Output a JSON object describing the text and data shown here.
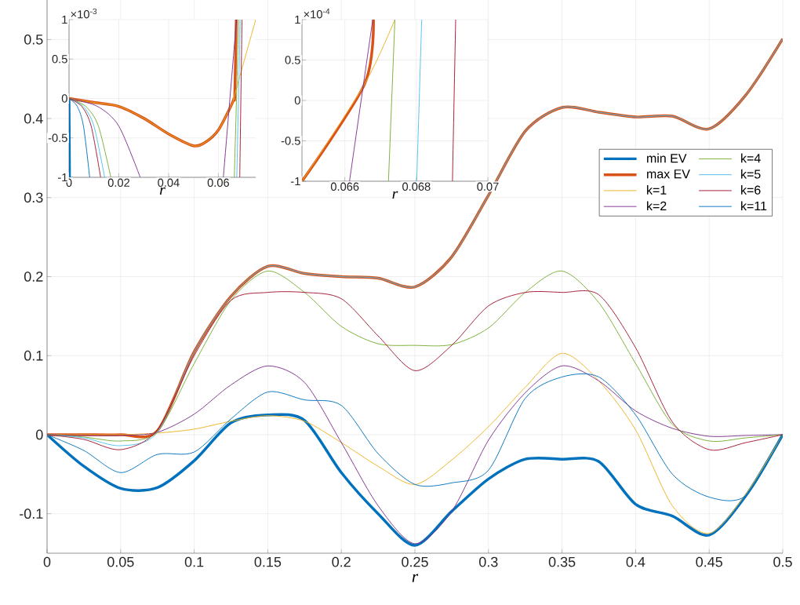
{
  "chart_data": [
    {
      "type": "line",
      "xlabel": "r",
      "x": [
        0,
        0.025,
        0.05,
        0.075,
        0.1,
        0.125,
        0.15,
        0.175,
        0.2,
        0.225,
        0.25,
        0.275,
        0.3,
        0.325,
        0.35,
        0.375,
        0.4,
        0.425,
        0.45,
        0.475,
        0.5
      ],
      "xlim": [
        0,
        0.5
      ],
      "xticks": [
        0,
        0.05,
        0.1,
        0.15,
        0.2,
        0.25,
        0.3,
        0.35,
        0.4,
        0.45,
        0.5
      ],
      "ylim": [
        -0.15,
        0.55
      ],
      "yticks": [
        -0.1,
        0,
        0.1,
        0.2,
        0.3,
        0.4,
        0.5
      ],
      "grid": true,
      "legend": "top right",
      "series": [
        {
          "name": "min EV",
          "color": "#0072bd",
          "values": [
            0,
            -0.04,
            -0.068,
            -0.067,
            -0.033,
            0.015,
            0.025,
            0.018,
            -0.048,
            -0.1,
            -0.14,
            -0.097,
            -0.056,
            -0.031,
            -0.031,
            -0.034,
            -0.088,
            -0.103,
            -0.127,
            -0.077,
            0
          ]
        },
        {
          "name": "max EV",
          "color": "#d95319",
          "values": [
            0,
            0,
            0,
            0.005,
            0.105,
            0.175,
            0.213,
            0.204,
            0.2,
            0.198,
            0.187,
            0.225,
            0.303,
            0.384,
            0.414,
            0.408,
            0.402,
            0.403,
            0.387,
            0.43,
            0.501
          ]
        },
        {
          "name": "k=1",
          "color": "#edb120",
          "values": [
            0,
            0,
            0,
            0.002,
            0.007,
            0.017,
            0.024,
            0.017,
            -0.01,
            -0.04,
            -0.063,
            -0.032,
            0.01,
            0.06,
            0.103,
            0.068,
            0.006,
            -0.09,
            -0.125,
            -0.075,
            0
          ]
        },
        {
          "name": "k=2",
          "color": "#7e2f8e",
          "values": [
            0,
            -0.001,
            -0.001,
            0.003,
            0.026,
            0.063,
            0.087,
            0.066,
            -0.01,
            -0.09,
            -0.138,
            -0.097,
            -0.007,
            0.053,
            0.087,
            0.068,
            0.03,
            0.008,
            -0.002,
            -0.001,
            0
          ]
        },
        {
          "name": "k=4",
          "color": "#77ac30",
          "values": [
            0,
            -0.003,
            -0.008,
            0.004,
            0.09,
            0.17,
            0.207,
            0.18,
            0.137,
            0.115,
            0.113,
            0.114,
            0.135,
            0.18,
            0.207,
            0.167,
            0.09,
            0.013,
            -0.008,
            -0.004,
            0
          ]
        },
        {
          "name": "k=5",
          "color": "#4dbeee",
          "values": [
            0,
            -0.004,
            -0.014,
            0.003,
            0.105,
            0.175,
            0.213,
            0.204,
            0.2,
            0.198,
            0.187,
            0.225,
            0.303,
            0.384,
            0.414,
            0.408,
            0.402,
            0.403,
            0.387,
            0.43,
            0.501
          ]
        },
        {
          "name": "k=6",
          "color": "#a2142f",
          "values": [
            0,
            -0.006,
            -0.019,
            0.006,
            0.1,
            0.17,
            0.18,
            0.18,
            0.172,
            0.125,
            0.081,
            0.113,
            0.163,
            0.18,
            0.18,
            0.177,
            0.11,
            0.016,
            -0.019,
            -0.01,
            0
          ]
        },
        {
          "name": "k=11",
          "color": "#0072bd",
          "values": [
            0,
            -0.02,
            -0.048,
            -0.025,
            -0.022,
            0.02,
            0.054,
            0.044,
            0.037,
            -0.024,
            -0.063,
            -0.061,
            -0.045,
            0.046,
            0.073,
            0.073,
            0.025,
            -0.05,
            -0.079,
            -0.077,
            0
          ]
        }
      ]
    },
    {
      "type": "line",
      "xlabel": "r",
      "annotations": [
        "×10$^{-3}$"
      ],
      "xlim": [
        0,
        0.075
      ],
      "xticks": [
        0,
        0.02,
        0.04,
        0.06
      ],
      "ylim": [
        -1,
        1
      ],
      "yticks": [
        -1,
        -0.5,
        0,
        0.5,
        1
      ],
      "grid": true,
      "series": [
        {
          "color": "#0072bd",
          "x": [
            0,
            0.0002
          ],
          "values": [
            0,
            -1
          ]
        },
        {
          "color": "#d95319",
          "x": [
            0,
            0.01,
            0.02,
            0.03,
            0.04,
            0.05,
            0.055,
            0.06,
            0.065,
            0.0663,
            0.0666,
            0.0672
          ],
          "values": [
            0,
            -0.05,
            -0.1,
            -0.25,
            -0.45,
            -0.6,
            -0.55,
            -0.4,
            -0.1,
            0,
            0.05,
            1
          ]
        },
        {
          "color": "#edb120",
          "x": [
            0,
            0.01,
            0.02,
            0.03,
            0.04,
            0.05,
            0.055,
            0.06,
            0.065,
            0.0663,
            0.0666,
            0.075
          ],
          "values": [
            0,
            -0.05,
            -0.1,
            -0.25,
            -0.45,
            -0.6,
            -0.55,
            -0.4,
            -0.1,
            0,
            0.05,
            1
          ]
        },
        {
          "color": "#7e2f8e",
          "x": [
            0,
            0.0114,
            0.02,
            0.0286,
            0.045,
            0.062,
            0.0673
          ],
          "values": [
            0,
            -0.1,
            -0.35,
            -1,
            null,
            -1,
            1
          ]
        },
        {
          "color": "#77ac30",
          "x": [
            0,
            0.0067,
            0.0118,
            0.0168,
            0.04,
            0.0664,
            0.0682
          ],
          "values": [
            0,
            -0.1,
            -0.35,
            -1,
            null,
            -1,
            1
          ]
        },
        {
          "color": "#4dbeee",
          "x": [
            0,
            0.0057,
            0.01,
            0.0143,
            0.04,
            0.0674,
            0.0688
          ],
          "values": [
            0,
            -0.1,
            -0.35,
            -1,
            null,
            -1,
            1
          ]
        },
        {
          "color": "#a2142f",
          "x": [
            0,
            0.0051,
            0.0089,
            0.0127,
            0.04,
            0.0686,
            0.0695
          ],
          "values": [
            0,
            -0.1,
            -0.35,
            -1,
            null,
            -1,
            1
          ]
        },
        {
          "color": "#0072bd",
          "x": [
            0,
            0.0033,
            0.0058,
            0.0083
          ],
          "values": [
            0,
            -0.1,
            -0.35,
            -1
          ]
        }
      ]
    },
    {
      "type": "line",
      "xlabel": "r",
      "annotations": [
        "×10$^{-4}$"
      ],
      "xlim": [
        0.0648,
        0.07
      ],
      "xticks": [
        0.066,
        0.068,
        0.07
      ],
      "ylim": [
        -1,
        1
      ],
      "yticks": [
        -1,
        -0.5,
        0,
        0.5,
        1
      ],
      "grid": true,
      "series": [
        {
          "color": "#d95319",
          "x": [
            0.0648,
            0.06655,
            0.0668
          ],
          "values": [
            -1,
            0.2,
            1
          ]
        },
        {
          "color": "#edb120",
          "x": [
            0.0648,
            0.06655,
            0.0674
          ],
          "values": [
            -1,
            0.2,
            1
          ]
        },
        {
          "color": "#7e2f8e",
          "x": [
            0.06613,
            0.06678
          ],
          "values": [
            -1,
            1
          ]
        },
        {
          "color": "#77ac30",
          "x": [
            0.06722,
            0.0674
          ],
          "values": [
            -1,
            1
          ]
        },
        {
          "color": "#4dbeee",
          "x": [
            0.06801,
            0.06815
          ],
          "values": [
            -1,
            1
          ]
        },
        {
          "color": "#a2142f",
          "x": [
            0.06901,
            0.0691
          ],
          "values": [
            -1,
            1
          ]
        }
      ]
    }
  ]
}
